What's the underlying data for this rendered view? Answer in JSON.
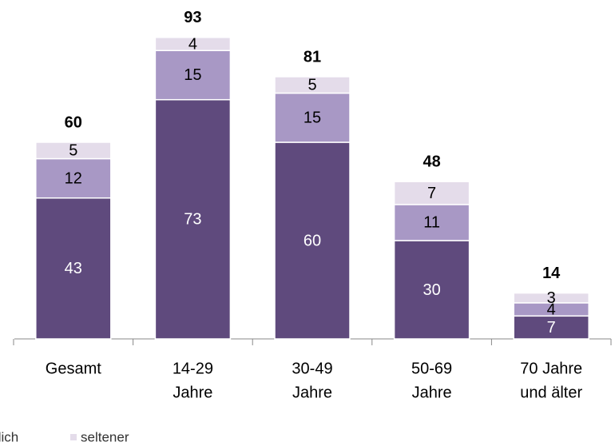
{
  "chart_data": {
    "type": "stacked-bar",
    "categories": [
      [
        "Gesamt"
      ],
      [
        "14-29",
        "Jahre"
      ],
      [
        "30-49",
        "Jahre"
      ],
      [
        "50-69",
        "Jahre"
      ],
      [
        "70 Jahre",
        "und älter"
      ]
    ],
    "series": [
      {
        "name": null,
        "color": "#5f4a7d",
        "values": [
          43,
          73,
          60,
          30,
          7
        ]
      },
      {
        "name": "tlich",
        "color": "#a898c5",
        "values": [
          12,
          15,
          15,
          11,
          4
        ]
      },
      {
        "name": "seltener",
        "color": "#e4dcea",
        "values": [
          5,
          4,
          5,
          7,
          3
        ]
      }
    ],
    "totals": [
      60,
      93,
      81,
      48,
      14
    ]
  }
}
